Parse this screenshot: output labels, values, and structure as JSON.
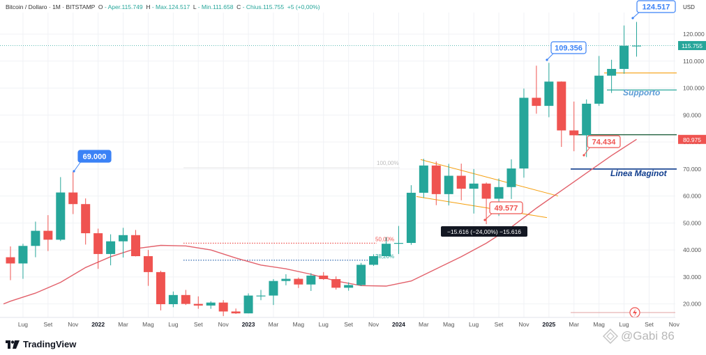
{
  "header": {
    "symbol": "Bitcoin / Dollaro · 1M · BITSTAMP",
    "open_label": "O",
    "open_value": "- Aper.115.749",
    "high_label": "H",
    "high_value": "- Max.124.517",
    "low_label": "L",
    "low_value": "- Min.111.658",
    "close_label": "C",
    "close_value": "- Chius.115.755",
    "change": "+5 (+0,00%)"
  },
  "brand": {
    "name": "TradingView"
  },
  "watermark": {
    "text": "@Gabi 86",
    "icon": "tradingview-diamond-icon"
  },
  "colors": {
    "up": "#26a69a",
    "down": "#ef5350",
    "ma": "#e2606a",
    "blue": "#2962ff",
    "support": "#5b9bd5",
    "orange": "#f59e0b",
    "green_line": "#1b5e3a",
    "navy_line": "#0d3b8c"
  },
  "chart_data": {
    "type": "candlestick",
    "currency_label": "USD",
    "ylim": [
      15000,
      128000
    ],
    "y_ticks": [
      "20.000",
      "30.000",
      "40.000",
      "50.000",
      "60.000",
      "70.000",
      "80.000",
      "90.000",
      "100.000",
      "110.000",
      "120.000"
    ],
    "x_ticks": [
      "Lug",
      "Set",
      "Nov",
      "2022",
      "Mar",
      "Mag",
      "Lug",
      "Set",
      "Nov",
      "2023",
      "Mar",
      "Mag",
      "Lug",
      "Set",
      "Nov",
      "2024",
      "Mar",
      "Mag",
      "Lug",
      "Set",
      "Nov",
      "2025",
      "Mar",
      "Mag",
      "Lug",
      "Set",
      "Nov"
    ],
    "candles": [
      {
        "month": "2021-06",
        "o": 37300,
        "h": 41300,
        "l": 28800,
        "c": 35000
      },
      {
        "month": "2021-07",
        "o": 35000,
        "h": 42300,
        "l": 29300,
        "c": 41500
      },
      {
        "month": "2021-08",
        "o": 41500,
        "h": 50500,
        "l": 37300,
        "c": 47100
      },
      {
        "month": "2021-09",
        "o": 47100,
        "h": 52900,
        "l": 39600,
        "c": 43800
      },
      {
        "month": "2021-10",
        "o": 43800,
        "h": 67000,
        "l": 43300,
        "c": 61300
      },
      {
        "month": "2021-11",
        "o": 61300,
        "h": 69000,
        "l": 53300,
        "c": 57000
      },
      {
        "month": "2021-12",
        "o": 57000,
        "h": 59100,
        "l": 42000,
        "c": 46200
      },
      {
        "month": "2022-01",
        "o": 46200,
        "h": 47900,
        "l": 33000,
        "c": 38500
      },
      {
        "month": "2022-02",
        "o": 38500,
        "h": 45800,
        "l": 34300,
        "c": 43200
      },
      {
        "month": "2022-03",
        "o": 43200,
        "h": 48200,
        "l": 37200,
        "c": 45500
      },
      {
        "month": "2022-04",
        "o": 45500,
        "h": 47400,
        "l": 37600,
        "c": 37700
      },
      {
        "month": "2022-05",
        "o": 37700,
        "h": 40000,
        "l": 26700,
        "c": 31800
      },
      {
        "month": "2022-06",
        "o": 31800,
        "h": 32300,
        "l": 17600,
        "c": 19900
      },
      {
        "month": "2022-07",
        "o": 19900,
        "h": 24600,
        "l": 18800,
        "c": 23300
      },
      {
        "month": "2022-08",
        "o": 23300,
        "h": 25200,
        "l": 19600,
        "c": 20000
      },
      {
        "month": "2022-09",
        "o": 20000,
        "h": 22800,
        "l": 18200,
        "c": 19400
      },
      {
        "month": "2022-10",
        "o": 19400,
        "h": 21000,
        "l": 18200,
        "c": 20500
      },
      {
        "month": "2022-11",
        "o": 20500,
        "h": 21400,
        "l": 15500,
        "c": 17200
      },
      {
        "month": "2022-12",
        "o": 17200,
        "h": 18300,
        "l": 16300,
        "c": 16500
      },
      {
        "month": "2023-01",
        "o": 16500,
        "h": 23900,
        "l": 16500,
        "c": 23100
      },
      {
        "month": "2023-02",
        "o": 23100,
        "h": 25200,
        "l": 21400,
        "c": 23100
      },
      {
        "month": "2023-03",
        "o": 23100,
        "h": 29200,
        "l": 19600,
        "c": 28500
      },
      {
        "month": "2023-04",
        "o": 28500,
        "h": 31000,
        "l": 26900,
        "c": 29300
      },
      {
        "month": "2023-05",
        "o": 29300,
        "h": 29800,
        "l": 25900,
        "c": 27200
      },
      {
        "month": "2023-06",
        "o": 27200,
        "h": 31400,
        "l": 24800,
        "c": 30500
      },
      {
        "month": "2023-07",
        "o": 30500,
        "h": 31800,
        "l": 28900,
        "c": 29200
      },
      {
        "month": "2023-08",
        "o": 29200,
        "h": 30200,
        "l": 25300,
        "c": 26000
      },
      {
        "month": "2023-09",
        "o": 26000,
        "h": 28000,
        "l": 24900,
        "c": 27000
      },
      {
        "month": "2023-10",
        "o": 27000,
        "h": 35200,
        "l": 26600,
        "c": 34500
      },
      {
        "month": "2023-11",
        "o": 34500,
        "h": 38400,
        "l": 34100,
        "c": 37700
      },
      {
        "month": "2023-12",
        "o": 37700,
        "h": 44800,
        "l": 37600,
        "c": 42300
      },
      {
        "month": "2024-01",
        "o": 42300,
        "h": 48900,
        "l": 38500,
        "c": 42600
      },
      {
        "month": "2024-02",
        "o": 42600,
        "h": 64000,
        "l": 41900,
        "c": 61200
      },
      {
        "month": "2024-03",
        "o": 61200,
        "h": 73800,
        "l": 59300,
        "c": 71300
      },
      {
        "month": "2024-04",
        "o": 71300,
        "h": 72800,
        "l": 56600,
        "c": 60700
      },
      {
        "month": "2024-05",
        "o": 60700,
        "h": 71900,
        "l": 56500,
        "c": 67500
      },
      {
        "month": "2024-06",
        "o": 67500,
        "h": 72000,
        "l": 58400,
        "c": 62700
      },
      {
        "month": "2024-07",
        "o": 62700,
        "h": 70000,
        "l": 53500,
        "c": 64600
      },
      {
        "month": "2024-08",
        "o": 64600,
        "h": 65000,
        "l": 49577,
        "c": 59000
      },
      {
        "month": "2024-09",
        "o": 59000,
        "h": 66500,
        "l": 52600,
        "c": 63300
      },
      {
        "month": "2024-10",
        "o": 63300,
        "h": 73600,
        "l": 58900,
        "c": 70200
      },
      {
        "month": "2024-11",
        "o": 70200,
        "h": 99800,
        "l": 66800,
        "c": 96400
      },
      {
        "month": "2024-12",
        "o": 96400,
        "h": 108300,
        "l": 90500,
        "c": 93400
      },
      {
        "month": "2025-01",
        "o": 93400,
        "h": 109356,
        "l": 89200,
        "c": 102400
      },
      {
        "month": "2025-02",
        "o": 102400,
        "h": 102500,
        "l": 78200,
        "c": 84300
      },
      {
        "month": "2025-03",
        "o": 84300,
        "h": 95000,
        "l": 76600,
        "c": 82500
      },
      {
        "month": "2025-04",
        "o": 82500,
        "h": 95800,
        "l": 74434,
        "c": 94200
      },
      {
        "month": "2025-05",
        "o": 94200,
        "h": 111900,
        "l": 93400,
        "c": 104600
      },
      {
        "month": "2025-06",
        "o": 104600,
        "h": 110500,
        "l": 98200,
        "c": 107100
      },
      {
        "month": "2025-07",
        "o": 107100,
        "h": 123200,
        "l": 105300,
        "c": 115700
      },
      {
        "month": "2025-08",
        "o": 115749,
        "h": 124517,
        "l": 111658,
        "c": 115755
      }
    ],
    "moving_average": [
      {
        "month": "2021-06",
        "v": 21000
      },
      {
        "month": "2021-08",
        "v": 24000
      },
      {
        "month": "2021-10",
        "v": 28000
      },
      {
        "month": "2021-12",
        "v": 33500
      },
      {
        "month": "2022-02",
        "v": 37500
      },
      {
        "month": "2022-04",
        "v": 40500
      },
      {
        "month": "2022-06",
        "v": 41700
      },
      {
        "month": "2022-08",
        "v": 41500
      },
      {
        "month": "2022-10",
        "v": 40000
      },
      {
        "month": "2022-12",
        "v": 37000
      },
      {
        "month": "2023-02",
        "v": 34400
      },
      {
        "month": "2023-04",
        "v": 33000
      },
      {
        "month": "2023-06",
        "v": 31000
      },
      {
        "month": "2023-08",
        "v": 28500
      },
      {
        "month": "2023-10",
        "v": 26800
      },
      {
        "month": "2023-12",
        "v": 26600
      },
      {
        "month": "2024-02",
        "v": 28500
      },
      {
        "month": "2024-04",
        "v": 33000
      },
      {
        "month": "2024-06",
        "v": 37500
      },
      {
        "month": "2024-08",
        "v": 42500
      },
      {
        "month": "2024-10",
        "v": 48500
      },
      {
        "month": "2024-12",
        "v": 55500
      },
      {
        "month": "2025-02",
        "v": 62000
      },
      {
        "month": "2025-04",
        "v": 68500
      },
      {
        "month": "2025-06",
        "v": 75000
      },
      {
        "month": "2025-08",
        "v": 81000
      }
    ],
    "annotations": {
      "peak_2021": "69.000",
      "peak_2025_jan": "109.356",
      "peak_2025_aug": "124.517",
      "low_2024": "49.577",
      "low_2025": "74.434",
      "support": "Supporto",
      "maginot": "Linea Maginot",
      "fib_100": "100,00%",
      "fib_50": "50,00%",
      "fib_38": "38,20%",
      "measure": "−15.616 (−24,00%) −15.616",
      "current_price": "115.755",
      "ma_value": "80.975"
    }
  }
}
